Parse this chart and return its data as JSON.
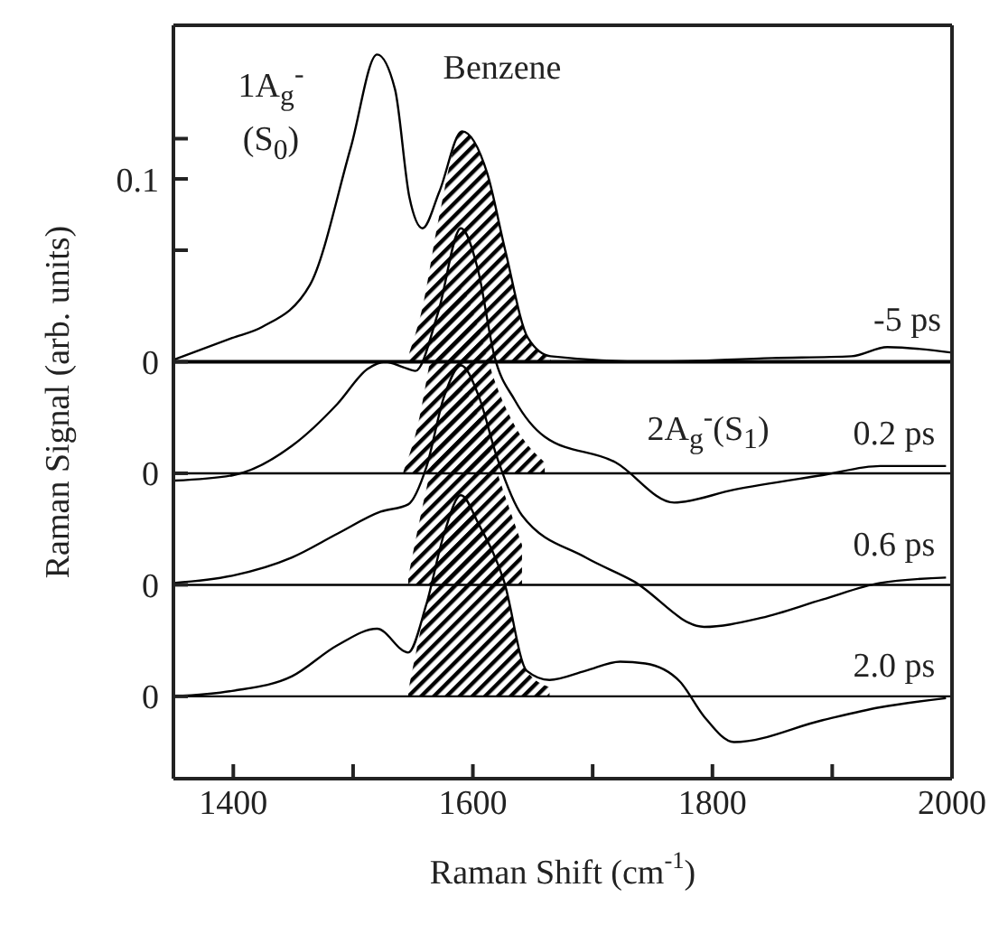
{
  "chart_data": {
    "type": "line",
    "xlabel": "Raman Shift (cm$^{-1}$)",
    "ylabel": "Raman Signal (arb. units)",
    "xlim": [
      1350,
      2000
    ],
    "xticks": [
      1400,
      {
        "value": 1500,
        "label": null
      },
      1600,
      {
        "value": 1700,
        "label": null
      },
      1800,
      {
        "value": 1900,
        "label": null
      },
      2000
    ],
    "ylim": [
      -0.228,
      0.184
    ],
    "yticks": [
      {
        "value": 0.122,
        "label": null
      },
      0.1,
      {
        "value": 0.061,
        "label": null
      },
      0,
      {
        "value": -0.061,
        "label": "0"
      },
      {
        "value": -0.122,
        "label": "0"
      },
      {
        "value": -0.183,
        "label": "0"
      }
    ],
    "marker": "none",
    "line_style": "solid",
    "series": [
      {
        "name": "-5 ps",
        "color": "#000000",
        "x": [
          1350,
          1399,
          1424,
          1464,
          1498,
          1520,
          1535,
          1547,
          1558,
          1572,
          1591,
          1612,
          1627,
          1646,
          1665,
          1750,
          1850,
          1916,
          1946,
          2000
        ],
        "values": [
          0.001,
          0.013,
          0.019,
          0.042,
          0.117,
          0.168,
          0.149,
          0.09,
          0.073,
          0.093,
          0.126,
          0.103,
          0.061,
          0.013,
          0.003,
          0.0,
          0.002,
          0.003,
          0.008,
          0.005
        ],
        "lower": [
          null,
          null,
          null,
          null,
          null,
          null,
          null,
          0,
          0,
          0,
          0,
          0,
          0,
          0,
          0,
          null,
          null,
          null,
          null,
          null
        ],
        "upper": [
          null,
          null,
          null,
          null,
          null,
          null,
          null,
          0.005,
          0.03,
          0.08,
          0.126,
          0.103,
          0.061,
          0.013,
          0.003,
          null,
          null,
          null,
          null,
          null
        ]
      },
      {
        "name": "0.2 ps",
        "color": "#000000",
        "x": [
          1351,
          1400,
          1449,
          1487,
          1512,
          1527,
          1542,
          1552,
          1571,
          1590,
          1604,
          1618,
          1635,
          1660,
          1719,
          1768,
          1818,
          1892,
          1940,
          1995
        ],
        "values": [
          -0.065,
          -0.062,
          -0.046,
          -0.023,
          -0.004,
          0.0,
          -0.003,
          -0.005,
          0.027,
          0.073,
          0.051,
          0.003,
          -0.021,
          -0.041,
          -0.055,
          -0.077,
          -0.07,
          -0.062,
          -0.057,
          -0.057
        ],
        "lower": [
          null,
          null,
          null,
          null,
          null,
          null,
          -0.061,
          -0.061,
          -0.061,
          -0.061,
          -0.061,
          -0.061,
          -0.061,
          -0.061,
          null,
          null,
          null,
          null,
          null,
          null
        ],
        "upper": [
          null,
          null,
          null,
          null,
          null,
          null,
          -0.06,
          -0.04,
          0.02,
          0.04,
          0.02,
          -0.01,
          -0.035,
          -0.055,
          null,
          null,
          null,
          null,
          null,
          null
        ]
      },
      {
        "name": "0.6 ps",
        "color": "#000000",
        "x": [
          1350,
          1399,
          1449,
          1487,
          1523,
          1546,
          1561,
          1576,
          1590,
          1605,
          1620,
          1641,
          1694,
          1734,
          1793,
          1841,
          1892,
          1940,
          1995
        ],
        "values": [
          -0.121,
          -0.117,
          -0.107,
          -0.094,
          -0.082,
          -0.078,
          -0.058,
          -0.019,
          -0.002,
          -0.019,
          -0.052,
          -0.084,
          -0.107,
          -0.12,
          -0.145,
          -0.14,
          -0.13,
          -0.121,
          -0.118
        ],
        "lower": [
          null,
          null,
          null,
          null,
          null,
          -0.122,
          -0.122,
          -0.122,
          -0.122,
          -0.122,
          -0.122,
          -0.122,
          null,
          null,
          null,
          null,
          null,
          null,
          null
        ],
        "upper": [
          null,
          null,
          null,
          null,
          null,
          -0.118,
          -0.07,
          -0.03,
          -0.015,
          -0.03,
          -0.06,
          -0.1,
          null,
          null,
          null,
          null,
          null,
          null,
          null
        ]
      },
      {
        "name": "2.0 ps",
        "color": "#000000",
        "x": [
          1350,
          1399,
          1449,
          1487,
          1520,
          1546,
          1561,
          1576,
          1590,
          1605,
          1626,
          1645,
          1664,
          1694,
          1723,
          1744,
          1773,
          1793,
          1818,
          1892,
          1940,
          1995
        ],
        "values": [
          -0.183,
          -0.18,
          -0.172,
          -0.155,
          -0.146,
          -0.159,
          -0.133,
          -0.094,
          -0.073,
          -0.089,
          -0.12,
          -0.169,
          -0.174,
          -0.169,
          -0.164,
          -0.165,
          -0.175,
          -0.194,
          -0.208,
          -0.196,
          -0.189,
          -0.184
        ],
        "lower": [
          null,
          null,
          null,
          null,
          null,
          -0.183,
          -0.183,
          -0.183,
          -0.183,
          -0.183,
          -0.183,
          -0.183,
          -0.183,
          null,
          null,
          null,
          null,
          null,
          null,
          null,
          null,
          null
        ],
        "upper": [
          null,
          null,
          null,
          null,
          null,
          -0.18,
          -0.133,
          -0.094,
          -0.073,
          -0.089,
          -0.12,
          -0.169,
          -0.178,
          null,
          null,
          null,
          null,
          null,
          null,
          null,
          null,
          null
        ]
      }
    ],
    "ref_lines": [
      {
        "axis": "y",
        "value": 0,
        "color": "#000000"
      },
      {
        "axis": "y",
        "value": -0.061,
        "color": "#000000"
      },
      {
        "axis": "y",
        "value": -0.122,
        "color": "#000000"
      },
      {
        "axis": "y",
        "value": -0.183,
        "color": "#000000"
      }
    ],
    "annotations": [
      "1A$_{g}$$^{-}$",
      "(S$_{0}$)",
      "Benzene",
      "2A$_{g}$$^{-}$(S$_{1}$)"
    ]
  }
}
